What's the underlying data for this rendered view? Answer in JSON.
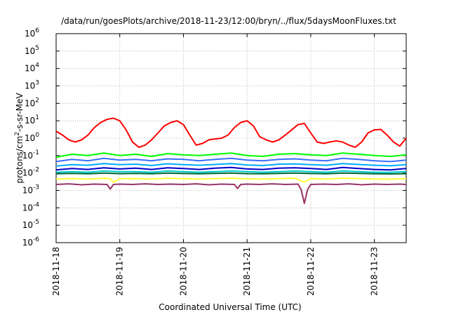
{
  "chart_data": {
    "type": "line",
    "title": "/data/run/goesPlots/archive/2018-11-23/12:00/bryn/../flux/5daysMoonFluxes.txt",
    "xlabel": "Coordinated Universal Time (UTC)",
    "ylabel": {
      "base": "protons/cm",
      "sup": "2",
      "rest": "-s-sr-MeV"
    },
    "yscale": "log",
    "ylim": [
      1e-06,
      1000000.0
    ],
    "xlim": [
      0,
      5.5
    ],
    "x_unit": "days since 2018-11-18 00:00 UTC",
    "yticks": [
      {
        "value": -6,
        "base": "10",
        "exp": "-6"
      },
      {
        "value": -5,
        "base": "10",
        "exp": "-5"
      },
      {
        "value": -4,
        "base": "10",
        "exp": "-4"
      },
      {
        "value": -3,
        "base": "10",
        "exp": "-3"
      },
      {
        "value": -2,
        "base": "10",
        "exp": "-2"
      },
      {
        "value": -1,
        "base": "10",
        "exp": "-1"
      },
      {
        "value": 0,
        "base": "10",
        "exp": "0"
      },
      {
        "value": 1,
        "base": "10",
        "exp": "1"
      },
      {
        "value": 2,
        "base": "10",
        "exp": "2"
      },
      {
        "value": 3,
        "base": "10",
        "exp": "3"
      },
      {
        "value": 4,
        "base": "10",
        "exp": "4"
      },
      {
        "value": 5,
        "base": "10",
        "exp": "5"
      },
      {
        "value": 6,
        "base": "10",
        "exp": "6"
      }
    ],
    "xticks": [
      {
        "value": 0,
        "label": "2018-11-18"
      },
      {
        "value": 1,
        "label": "2018-11-19"
      },
      {
        "value": 2,
        "label": "2018-11-20"
      },
      {
        "value": 3,
        "label": "2018-11-21"
      },
      {
        "value": 4,
        "label": "2018-11-22"
      },
      {
        "value": 5,
        "label": "2018-11-23"
      }
    ],
    "grid": true,
    "series": [
      {
        "color": "#ff0000",
        "x": [
          0,
          0.1,
          0.2,
          0.3,
          0.4,
          0.5,
          0.6,
          0.7,
          0.8,
          0.9,
          1.0,
          1.1,
          1.2,
          1.3,
          1.4,
          1.5,
          1.6,
          1.7,
          1.8,
          1.9,
          2.0,
          2.1,
          2.2,
          2.3,
          2.4,
          2.5,
          2.6,
          2.7,
          2.8,
          2.9,
          3.0,
          3.1,
          3.2,
          3.3,
          3.4,
          3.5,
          3.6,
          3.7,
          3.8,
          3.9,
          4.0,
          4.1,
          4.2,
          4.3,
          4.4,
          4.5,
          4.6,
          4.7,
          4.8,
          4.9,
          5.0,
          5.1,
          5.2,
          5.3,
          5.4,
          5.5
        ],
        "y": [
          2.5,
          1.5,
          0.8,
          0.6,
          0.8,
          1.5,
          4,
          8,
          12,
          14,
          10,
          3,
          0.6,
          0.3,
          0.4,
          0.8,
          2,
          5,
          8,
          10,
          6,
          1.5,
          0.4,
          0.5,
          0.8,
          0.9,
          1.0,
          1.5,
          4,
          8,
          10,
          5,
          1.2,
          0.8,
          0.6,
          0.8,
          1.5,
          3,
          6,
          7,
          2,
          0.6,
          0.5,
          0.6,
          0.7,
          0.6,
          0.4,
          0.3,
          0.6,
          2,
          3,
          3.2,
          1.5,
          0.6,
          0.35,
          1.0
        ]
      },
      {
        "color": "#00ff00",
        "x": [
          0,
          0.25,
          0.5,
          0.75,
          1.0,
          1.25,
          1.5,
          1.75,
          2.0,
          2.25,
          2.5,
          2.75,
          3.0,
          3.25,
          3.5,
          3.75,
          4.0,
          4.25,
          4.5,
          4.75,
          5.0,
          5.25,
          5.5
        ],
        "y": [
          0.08,
          0.12,
          0.1,
          0.14,
          0.1,
          0.12,
          0.09,
          0.13,
          0.11,
          0.1,
          0.12,
          0.14,
          0.1,
          0.09,
          0.12,
          0.13,
          0.11,
          0.1,
          0.14,
          0.12,
          0.1,
          0.09,
          0.11
        ]
      },
      {
        "color": "#3a6fff",
        "x": [
          0,
          0.25,
          0.5,
          0.75,
          1.0,
          1.25,
          1.5,
          1.75,
          2.0,
          2.25,
          2.5,
          2.75,
          3.0,
          3.25,
          3.5,
          3.75,
          4.0,
          4.25,
          4.5,
          4.75,
          5.0,
          5.25,
          5.5
        ],
        "y": [
          0.045,
          0.06,
          0.05,
          0.07,
          0.055,
          0.06,
          0.05,
          0.065,
          0.06,
          0.05,
          0.06,
          0.07,
          0.055,
          0.05,
          0.06,
          0.065,
          0.055,
          0.05,
          0.07,
          0.06,
          0.05,
          0.045,
          0.055
        ]
      },
      {
        "color": "#00aaff",
        "x": [
          0,
          0.25,
          0.5,
          0.75,
          1.0,
          1.25,
          1.5,
          1.75,
          2.0,
          2.25,
          2.5,
          2.75,
          3.0,
          3.25,
          3.5,
          3.75,
          4.0,
          4.25,
          4.5,
          4.75,
          5.0,
          5.25,
          5.5
        ],
        "y": [
          0.025,
          0.03,
          0.028,
          0.035,
          0.03,
          0.032,
          0.027,
          0.034,
          0.03,
          0.028,
          0.031,
          0.035,
          0.029,
          0.027,
          0.032,
          0.033,
          0.03,
          0.028,
          0.035,
          0.031,
          0.028,
          0.026,
          0.03
        ]
      },
      {
        "color": "#0000cc",
        "x": [
          0,
          0.25,
          0.5,
          0.75,
          1.0,
          1.25,
          1.5,
          1.75,
          2.0,
          2.25,
          2.5,
          2.75,
          3.0,
          3.25,
          3.5,
          3.75,
          4.0,
          4.25,
          4.5,
          4.75,
          5.0,
          5.25,
          5.5
        ],
        "y": [
          0.015,
          0.018,
          0.016,
          0.02,
          0.017,
          0.019,
          0.016,
          0.02,
          0.018,
          0.016,
          0.019,
          0.021,
          0.017,
          0.016,
          0.019,
          0.02,
          0.018,
          0.016,
          0.021,
          0.018,
          0.016,
          0.015,
          0.018
        ]
      },
      {
        "color": "#00cccc",
        "x": [
          0,
          0.25,
          0.5,
          0.75,
          1.0,
          1.25,
          1.5,
          1.75,
          2.0,
          2.25,
          2.5,
          2.75,
          3.0,
          3.25,
          3.5,
          3.75,
          4.0,
          4.25,
          4.5,
          4.75,
          5.0,
          5.25,
          5.5
        ],
        "y": [
          0.011,
          0.012,
          0.011,
          0.013,
          0.012,
          0.012,
          0.011,
          0.013,
          0.012,
          0.011,
          0.012,
          0.013,
          0.012,
          0.011,
          0.012,
          0.013,
          0.012,
          0.011,
          0.013,
          0.012,
          0.011,
          0.011,
          0.012
        ]
      },
      {
        "color": "#006633",
        "x": [
          0,
          0.25,
          0.5,
          0.75,
          1.0,
          1.25,
          1.5,
          1.75,
          2.0,
          2.25,
          2.5,
          2.75,
          3.0,
          3.25,
          3.5,
          3.75,
          4.0,
          4.25,
          4.5,
          4.75,
          5.0,
          5.25,
          5.5
        ],
        "y": [
          0.009,
          0.0095,
          0.009,
          0.01,
          0.0092,
          0.0095,
          0.009,
          0.01,
          0.0093,
          0.009,
          0.0095,
          0.01,
          0.0092,
          0.009,
          0.0095,
          0.01,
          0.0093,
          0.009,
          0.01,
          0.0095,
          0.009,
          0.0088,
          0.0092
        ]
      },
      {
        "color": "#ffff33",
        "x": [
          0,
          0.25,
          0.5,
          0.75,
          0.85,
          0.9,
          1.0,
          1.25,
          1.5,
          1.75,
          2.0,
          2.25,
          2.5,
          2.75,
          3.0,
          3.25,
          3.5,
          3.75,
          3.9,
          4.0,
          4.25,
          4.5,
          4.75,
          5.0,
          5.25,
          5.5
        ],
        "y": [
          0.0045,
          0.0048,
          0.0045,
          0.005,
          0.0046,
          0.003,
          0.0047,
          0.0048,
          0.0045,
          0.005,
          0.0047,
          0.0045,
          0.0048,
          0.005,
          0.0046,
          0.0045,
          0.0048,
          0.005,
          0.003,
          0.0047,
          0.0045,
          0.005,
          0.0048,
          0.0045,
          0.0044,
          0.0047
        ]
      },
      {
        "color": "#993366",
        "x": [
          0,
          0.2,
          0.4,
          0.6,
          0.8,
          0.85,
          0.9,
          1.0,
          1.2,
          1.4,
          1.6,
          1.8,
          2.0,
          2.2,
          2.4,
          2.6,
          2.8,
          2.85,
          2.9,
          3.0,
          3.2,
          3.4,
          3.6,
          3.8,
          3.85,
          3.9,
          3.95,
          4.0,
          4.2,
          4.4,
          4.6,
          4.8,
          5.0,
          5.2,
          5.4,
          5.5
        ],
        "y": [
          0.0022,
          0.0024,
          0.0021,
          0.0023,
          0.0022,
          0.0012,
          0.0022,
          0.0023,
          0.0022,
          0.0024,
          0.0022,
          0.0023,
          0.0022,
          0.0024,
          0.0021,
          0.0023,
          0.0022,
          0.0013,
          0.0022,
          0.0023,
          0.0022,
          0.0024,
          0.0022,
          0.0023,
          0.0011,
          0.00018,
          0.0011,
          0.0022,
          0.0023,
          0.0022,
          0.0024,
          0.0021,
          0.0023,
          0.0022,
          0.0023,
          0.0022
        ]
      }
    ]
  }
}
